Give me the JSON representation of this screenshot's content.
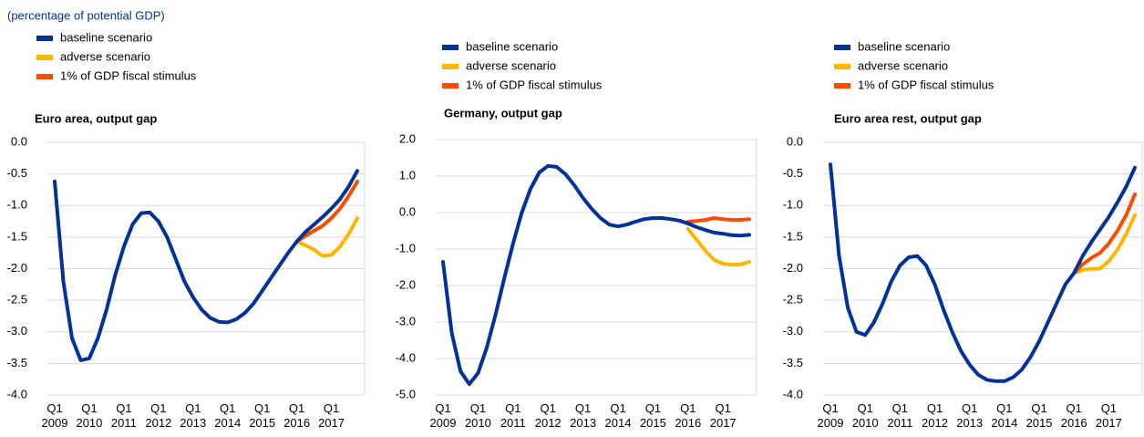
{
  "note": "(percentage of potential GDP)",
  "chart_data": [
    {
      "type": "line",
      "title": "Euro area, output gap",
      "categories": [
        "Q1 2009",
        null,
        null,
        null,
        "Q1 2010",
        null,
        null,
        null,
        "Q1 2011",
        null,
        null,
        null,
        "Q1 2012",
        null,
        null,
        null,
        "Q1 2013",
        null,
        null,
        null,
        "Q1 2014",
        null,
        null,
        null,
        "Q1 2015",
        null,
        null,
        null,
        "Q1 2016",
        null,
        null,
        null,
        "Q1 2017",
        null,
        null,
        null
      ],
      "series": [
        {
          "name": "baseline scenario",
          "color": "#003299",
          "values": [
            -0.62,
            -2.2,
            -3.1,
            -3.45,
            -3.42,
            -3.1,
            -2.65,
            -2.1,
            -1.65,
            -1.3,
            -1.12,
            -1.11,
            -1.25,
            -1.5,
            -1.85,
            -2.2,
            -2.45,
            -2.65,
            -2.78,
            -2.84,
            -2.85,
            -2.8,
            -2.7,
            -2.55,
            -2.35,
            -2.15,
            -1.95,
            -1.75,
            -1.57,
            -1.42,
            -1.3,
            -1.18,
            -1.05,
            -0.9,
            -0.7,
            -0.45
          ]
        },
        {
          "name": "adverse scenario",
          "color": "#ffb400",
          "values": [
            null,
            null,
            null,
            null,
            null,
            null,
            null,
            null,
            null,
            null,
            null,
            null,
            null,
            null,
            null,
            null,
            null,
            null,
            null,
            null,
            null,
            null,
            null,
            null,
            null,
            null,
            null,
            null,
            -1.57,
            -1.63,
            -1.7,
            -1.8,
            -1.78,
            -1.65,
            -1.45,
            -1.2
          ]
        },
        {
          "name": "1% of GDP fiscal stimulus",
          "color": "#ff4b00",
          "values": [
            null,
            null,
            null,
            null,
            null,
            null,
            null,
            null,
            null,
            null,
            null,
            null,
            null,
            null,
            null,
            null,
            null,
            null,
            null,
            null,
            null,
            null,
            null,
            null,
            null,
            null,
            null,
            null,
            -1.57,
            -1.48,
            -1.4,
            -1.32,
            -1.2,
            -1.05,
            -0.85,
            -0.62
          ]
        }
      ],
      "ylim": [
        -4,
        0
      ],
      "yticks": [
        {
          "value": -4,
          "label": "-4.0"
        },
        -3.5,
        {
          "value": -3,
          "label": "-3.0"
        },
        -2.5,
        {
          "value": -2,
          "label": "-2.0"
        },
        -1.5,
        {
          "value": -1,
          "label": "-1.0"
        },
        -0.5,
        {
          "value": 0,
          "label": "0.0"
        }
      ],
      "grid": true
    },
    {
      "type": "line",
      "title": "Germany, output gap",
      "categories": [
        "Q1 2009",
        null,
        null,
        null,
        "Q1 2010",
        null,
        null,
        null,
        "Q1 2011",
        null,
        null,
        null,
        "Q1 2012",
        null,
        null,
        null,
        "Q1 2013",
        null,
        null,
        null,
        "Q1 2014",
        null,
        null,
        null,
        "Q1 2015",
        null,
        null,
        null,
        "Q1 2016",
        null,
        null,
        null,
        "Q1 2017",
        null,
        null,
        null
      ],
      "series": [
        {
          "name": "baseline scenario",
          "color": "#003299",
          "values": [
            -1.35,
            -3.3,
            -4.35,
            -4.7,
            -4.4,
            -3.7,
            -2.8,
            -1.8,
            -0.85,
            0.0,
            0.65,
            1.1,
            1.28,
            1.25,
            1.05,
            0.75,
            0.4,
            0.1,
            -0.15,
            -0.33,
            -0.38,
            -0.33,
            -0.25,
            -0.18,
            -0.15,
            -0.15,
            -0.18,
            -0.22,
            -0.3,
            -0.4,
            -0.48,
            -0.55,
            -0.58,
            -0.62,
            -0.63,
            -0.61
          ]
        },
        {
          "name": "adverse scenario",
          "color": "#ffb400",
          "values": [
            null,
            null,
            null,
            null,
            null,
            null,
            null,
            null,
            null,
            null,
            null,
            null,
            null,
            null,
            null,
            null,
            null,
            null,
            null,
            null,
            null,
            null,
            null,
            null,
            null,
            null,
            null,
            null,
            -0.45,
            -0.75,
            -1.05,
            -1.3,
            -1.4,
            -1.43,
            -1.42,
            -1.35
          ]
        },
        {
          "name": "1% of GDP fiscal stimulus",
          "color": "#ff4b00",
          "values": [
            null,
            null,
            null,
            null,
            null,
            null,
            null,
            null,
            null,
            null,
            null,
            null,
            null,
            null,
            null,
            null,
            null,
            null,
            null,
            null,
            null,
            null,
            null,
            null,
            null,
            null,
            null,
            null,
            -0.25,
            -0.23,
            -0.2,
            -0.15,
            -0.18,
            -0.2,
            -0.2,
            -0.18
          ]
        }
      ],
      "ylim": [
        -5,
        2
      ],
      "yticks": [
        {
          "value": -5,
          "label": "-5.0"
        },
        {
          "value": -4,
          "label": "-4.0"
        },
        {
          "value": -3,
          "label": "-3.0"
        },
        {
          "value": -2,
          "label": "-2.0"
        },
        {
          "value": -1,
          "label": "-1.0"
        },
        {
          "value": 0,
          "label": "0.0"
        },
        {
          "value": 1,
          "label": "1.0"
        },
        {
          "value": 2,
          "label": "2.0"
        }
      ],
      "grid": true
    },
    {
      "type": "line",
      "title": "Euro area rest, output gap",
      "categories": [
        "Q1 2009",
        null,
        null,
        null,
        "Q1 2010",
        null,
        null,
        null,
        "Q1 2011",
        null,
        null,
        null,
        "Q1 2012",
        null,
        null,
        null,
        "Q1 2013",
        null,
        null,
        null,
        "Q1 2014",
        null,
        null,
        null,
        "Q1 2015",
        null,
        null,
        null,
        "Q1 2016",
        null,
        null,
        null,
        "Q1 2017",
        null,
        null,
        null
      ],
      "series": [
        {
          "name": "baseline scenario",
          "color": "#003299",
          "values": [
            -0.35,
            -1.8,
            -2.62,
            -3.0,
            -3.05,
            -2.85,
            -2.55,
            -2.2,
            -1.95,
            -1.82,
            -1.8,
            -1.95,
            -2.25,
            -2.65,
            -3.0,
            -3.3,
            -3.52,
            -3.68,
            -3.76,
            -3.78,
            -3.78,
            -3.72,
            -3.6,
            -3.4,
            -3.15,
            -2.85,
            -2.55,
            -2.25,
            -2.07,
            -1.8,
            -1.58,
            -1.38,
            -1.18,
            -0.95,
            -0.7,
            -0.4
          ]
        },
        {
          "name": "adverse scenario",
          "color": "#ffb400",
          "values": [
            null,
            null,
            null,
            null,
            null,
            null,
            null,
            null,
            null,
            null,
            null,
            null,
            null,
            null,
            null,
            null,
            null,
            null,
            null,
            null,
            null,
            null,
            null,
            null,
            null,
            null,
            null,
            null,
            -2.07,
            -2.02,
            -2.0,
            -2.0,
            -1.88,
            -1.7,
            -1.45,
            -1.15
          ]
        },
        {
          "name": "1% of GDP fiscal stimulus",
          "color": "#ff4b00",
          "values": [
            null,
            null,
            null,
            null,
            null,
            null,
            null,
            null,
            null,
            null,
            null,
            null,
            null,
            null,
            null,
            null,
            null,
            null,
            null,
            null,
            null,
            null,
            null,
            null,
            null,
            null,
            null,
            null,
            -2.07,
            -1.93,
            -1.83,
            -1.75,
            -1.6,
            -1.4,
            -1.15,
            -0.82
          ]
        }
      ],
      "ylim": [
        -4,
        0
      ],
      "yticks": [
        {
          "value": -4,
          "label": "-4.0"
        },
        -3.5,
        {
          "value": -3,
          "label": "-3.0"
        },
        -2.5,
        {
          "value": -2,
          "label": "-2.0"
        },
        -1.5,
        {
          "value": -1,
          "label": "-1.0"
        },
        -0.5,
        {
          "value": 0,
          "label": "0.0"
        }
      ],
      "grid": true
    }
  ]
}
